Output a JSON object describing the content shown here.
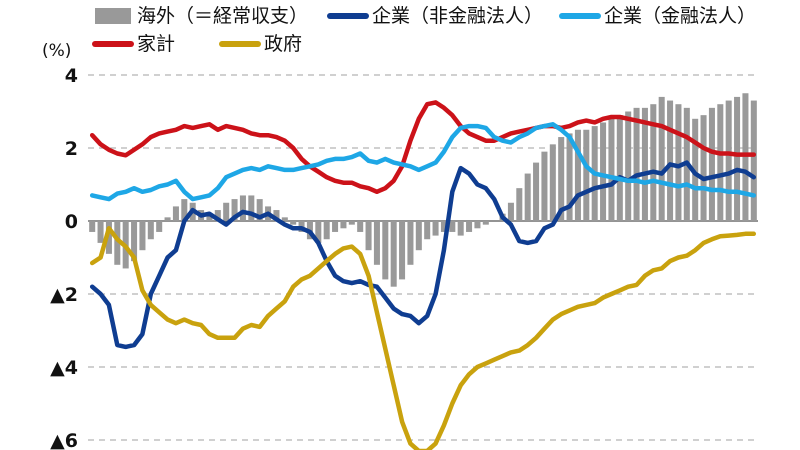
{
  "chart_data": {
    "type": "bar+line",
    "unit_label": "(%)",
    "ylim": [
      -6,
      4
    ],
    "yticks": [
      {
        "value": 4,
        "label": "4"
      },
      {
        "value": 2,
        "label": "2"
      },
      {
        "value": 0,
        "label": "0"
      },
      {
        "value": -2,
        "label": "▲2"
      },
      {
        "value": -4,
        "label": "▲4"
      },
      {
        "value": -6,
        "label": "▲6"
      }
    ],
    "grid": "dashed horizontal",
    "legend": [
      {
        "label": "海外（＝経常収支）",
        "kind": "bar",
        "color": "#999999"
      },
      {
        "label": "企業（非金融法人）",
        "kind": "line",
        "color": "#0f3d91"
      },
      {
        "label": "企業（金融法人）",
        "kind": "line",
        "color": "#1ea7e6"
      },
      {
        "label": "家計",
        "kind": "line",
        "color": "#cc1219"
      },
      {
        "label": "政府",
        "kind": "line",
        "color": "#c9a20e"
      }
    ],
    "bars": {
      "name": "海外（＝経常収支）",
      "color": "#999999",
      "values": [
        -0.3,
        -0.6,
        -0.9,
        -1.2,
        -1.3,
        -1.1,
        -0.8,
        -0.5,
        -0.3,
        0.1,
        0.4,
        0.6,
        0.5,
        0.3,
        0.2,
        0.3,
        0.5,
        0.6,
        0.7,
        0.7,
        0.6,
        0.4,
        0.3,
        0.1,
        -0.1,
        -0.3,
        -0.5,
        -0.6,
        -0.5,
        -0.3,
        -0.2,
        -0.1,
        -0.3,
        -0.8,
        -1.2,
        -1.6,
        -1.8,
        -1.6,
        -1.2,
        -0.8,
        -0.5,
        -0.4,
        -0.3,
        -0.3,
        -0.4,
        -0.3,
        -0.2,
        -0.1,
        0.0,
        0.2,
        0.5,
        0.9,
        1.3,
        1.6,
        1.9,
        2.1,
        2.3,
        2.4,
        2.5,
        2.5,
        2.6,
        2.7,
        2.8,
        2.9,
        3.0,
        3.1,
        3.1,
        3.2,
        3.4,
        3.3,
        3.2,
        3.1,
        2.8,
        2.9,
        3.1,
        3.2,
        3.3,
        3.4,
        3.5,
        3.3
      ]
    },
    "series": [
      {
        "name": "家計",
        "color": "#cc1219",
        "values": [
          2.35,
          2.1,
          1.95,
          1.85,
          1.8,
          1.95,
          2.1,
          2.3,
          2.4,
          2.45,
          2.5,
          2.6,
          2.55,
          2.6,
          2.65,
          2.5,
          2.6,
          2.55,
          2.5,
          2.4,
          2.35,
          2.35,
          2.3,
          2.2,
          2.0,
          1.7,
          1.5,
          1.35,
          1.2,
          1.1,
          1.05,
          1.05,
          0.95,
          0.9,
          0.8,
          0.9,
          1.1,
          1.5,
          2.2,
          2.8,
          3.2,
          3.25,
          3.1,
          2.9,
          2.6,
          2.4,
          2.3,
          2.2,
          2.2,
          2.3,
          2.4,
          2.45,
          2.5,
          2.55,
          2.6,
          2.6,
          2.55,
          2.6,
          2.7,
          2.75,
          2.7,
          2.8,
          2.85,
          2.85,
          2.8,
          2.75,
          2.7,
          2.65,
          2.6,
          2.5,
          2.4,
          2.3,
          2.15,
          2.0,
          1.9,
          1.85,
          1.85,
          1.82,
          1.82,
          1.82
        ]
      },
      {
        "name": "企業（非金融法人）",
        "color": "#0f3d91",
        "values": [
          -1.8,
          -2.0,
          -2.3,
          -3.4,
          -3.45,
          -3.4,
          -3.1,
          -2.0,
          -1.5,
          -1.0,
          -0.8,
          0.0,
          0.3,
          0.15,
          0.2,
          0.05,
          -0.1,
          0.1,
          0.25,
          0.2,
          0.1,
          0.2,
          0.05,
          -0.1,
          -0.2,
          -0.2,
          -0.3,
          -0.6,
          -1.1,
          -1.5,
          -1.65,
          -1.7,
          -1.65,
          -1.75,
          -1.8,
          -2.1,
          -2.4,
          -2.55,
          -2.6,
          -2.8,
          -2.6,
          -2.0,
          -0.8,
          0.8,
          1.45,
          1.3,
          1.0,
          0.9,
          0.6,
          0.1,
          -0.1,
          -0.55,
          -0.6,
          -0.55,
          -0.2,
          -0.1,
          0.3,
          0.4,
          0.7,
          0.8,
          0.9,
          0.95,
          1.0,
          1.2,
          1.1,
          1.25,
          1.3,
          1.35,
          1.3,
          1.55,
          1.5,
          1.6,
          1.3,
          1.15,
          1.2,
          1.25,
          1.3,
          1.4,
          1.35,
          1.2
        ]
      },
      {
        "name": "企業（金融法人）",
        "color": "#1ea7e6",
        "values": [
          0.7,
          0.65,
          0.6,
          0.75,
          0.8,
          0.9,
          0.8,
          0.85,
          0.95,
          1.0,
          1.1,
          0.8,
          0.6,
          0.65,
          0.7,
          0.9,
          1.2,
          1.3,
          1.4,
          1.45,
          1.4,
          1.5,
          1.45,
          1.4,
          1.4,
          1.45,
          1.5,
          1.55,
          1.65,
          1.7,
          1.7,
          1.75,
          1.85,
          1.65,
          1.6,
          1.7,
          1.6,
          1.55,
          1.5,
          1.4,
          1.5,
          1.6,
          1.9,
          2.3,
          2.55,
          2.6,
          2.6,
          2.55,
          2.3,
          2.2,
          2.15,
          2.3,
          2.4,
          2.55,
          2.6,
          2.65,
          2.5,
          2.3,
          1.9,
          1.5,
          1.3,
          1.25,
          1.2,
          1.15,
          1.1,
          1.1,
          1.05,
          1.1,
          1.05,
          1.0,
          0.95,
          1.0,
          0.9,
          0.9,
          0.85,
          0.85,
          0.8,
          0.8,
          0.75,
          0.7
        ]
      },
      {
        "name": "政府",
        "color": "#c9a20e",
        "values": [
          -1.15,
          -1.0,
          -0.2,
          -0.5,
          -0.7,
          -1.0,
          -1.9,
          -2.3,
          -2.5,
          -2.7,
          -2.8,
          -2.7,
          -2.8,
          -2.85,
          -3.1,
          -3.2,
          -3.2,
          -3.2,
          -2.95,
          -2.85,
          -2.9,
          -2.6,
          -2.4,
          -2.2,
          -1.8,
          -1.6,
          -1.5,
          -1.3,
          -1.1,
          -0.9,
          -0.75,
          -0.7,
          -0.9,
          -1.5,
          -2.5,
          -3.5,
          -4.5,
          -5.5,
          -6.1,
          -6.3,
          -6.3,
          -6.1,
          -5.6,
          -5.0,
          -4.5,
          -4.2,
          -4.0,
          -3.9,
          -3.8,
          -3.7,
          -3.6,
          -3.55,
          -3.4,
          -3.2,
          -2.95,
          -2.7,
          -2.55,
          -2.45,
          -2.35,
          -2.3,
          -2.25,
          -2.1,
          -2.0,
          -1.9,
          -1.8,
          -1.75,
          -1.5,
          -1.35,
          -1.3,
          -1.1,
          -1.0,
          -0.95,
          -0.8,
          -0.6,
          -0.5,
          -0.42,
          -0.4,
          -0.38,
          -0.35,
          -0.35
        ]
      }
    ]
  }
}
